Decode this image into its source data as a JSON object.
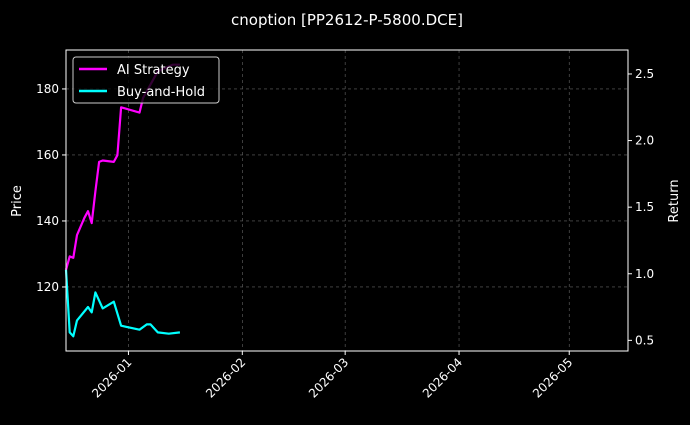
{
  "chart_data": {
    "type": "line",
    "title": "cnoption [PP2612-P-5800.DCE]",
    "xlabel": "",
    "ylabel_left": "Price",
    "ylabel_right": "Return",
    "xlim": [
      "2025-12-15",
      "2026-05-17"
    ],
    "ylim_left": [
      100.6,
      191.8
    ],
    "ylim_right": [
      0.42,
      2.68
    ],
    "x_ticks": [
      "2026-01",
      "2026-02",
      "2026-03",
      "2026-04",
      "2026-05"
    ],
    "x_tick_dates": [
      "2026-01-01",
      "2026-02-01",
      "2026-03-01",
      "2026-04-01",
      "2026-05-01"
    ],
    "y_ticks_left": [
      120,
      140,
      160,
      180
    ],
    "y_ticks_right": [
      "0.5",
      "1.0",
      "1.5",
      "2.0",
      "2.5"
    ],
    "grid": true,
    "legend": "top-left",
    "background": "#000000",
    "series": [
      {
        "name": "AI Strategy",
        "color": "#ff00ff",
        "axis": "right",
        "x": [
          "2025-12-15",
          "2025-12-16",
          "2025-12-17",
          "2025-12-18",
          "2025-12-20",
          "2025-12-21",
          "2025-12-22",
          "2025-12-23",
          "2025-12-24",
          "2025-12-25",
          "2025-12-28",
          "2025-12-29",
          "2025-12-30",
          "2026-01-04",
          "2026-01-05",
          "2026-01-09",
          "2026-01-13",
          "2026-01-15"
        ],
        "values": [
          1.03,
          1.13,
          1.12,
          1.29,
          1.42,
          1.47,
          1.38,
          1.62,
          1.84,
          1.85,
          1.84,
          1.89,
          2.25,
          2.21,
          2.32,
          2.52,
          2.57,
          2.57
        ]
      },
      {
        "name": "Buy-and-Hold",
        "color": "#00ffff",
        "axis": "right",
        "x": [
          "2025-12-15",
          "2025-12-16",
          "2025-12-17",
          "2025-12-18",
          "2025-12-21",
          "2025-12-22",
          "2025-12-23",
          "2025-12-25",
          "2025-12-28",
          "2025-12-30",
          "2026-01-04",
          "2026-01-06",
          "2026-01-07",
          "2026-01-09",
          "2026-01-12",
          "2026-01-15"
        ],
        "values": [
          1.03,
          0.56,
          0.53,
          0.65,
          0.75,
          0.71,
          0.86,
          0.74,
          0.79,
          0.61,
          0.58,
          0.62,
          0.62,
          0.56,
          0.55,
          0.56
        ]
      }
    ]
  }
}
